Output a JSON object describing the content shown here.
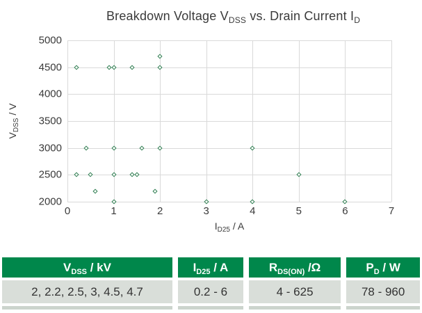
{
  "title": {
    "p1": "Breakdown Voltage V",
    "s1": "DSS",
    "p2": " vs. Drain Current I",
    "s2": "D"
  },
  "chart_data": {
    "type": "scatter",
    "title": "Breakdown Voltage V_DSS vs. Drain Current I_D",
    "xlabel": {
      "pre": "I",
      "sub": "D25",
      "post": " / A"
    },
    "ylabel": {
      "pre": "V",
      "sub": "DSS",
      "post": " / V"
    },
    "xlim": [
      0,
      7
    ],
    "ylim": [
      2000,
      5000
    ],
    "xticks": [
      0,
      1,
      2,
      3,
      4,
      5,
      6,
      7
    ],
    "yticks": [
      5000,
      4500,
      4000,
      3500,
      3000,
      2500,
      2000
    ],
    "grid": true,
    "legend": "none",
    "marker": {
      "shape": "diamond-outline",
      "color": "#2e7d50"
    },
    "points": [
      [
        0.2,
        4500
      ],
      [
        0.9,
        4500
      ],
      [
        1.0,
        4500
      ],
      [
        1.4,
        4500
      ],
      [
        2.0,
        4500
      ],
      [
        2.0,
        4700
      ],
      [
        0.4,
        3000
      ],
      [
        1.0,
        3000
      ],
      [
        1.6,
        3000
      ],
      [
        2.0,
        3000
      ],
      [
        4.0,
        3000
      ],
      [
        0.2,
        2500
      ],
      [
        0.5,
        2500
      ],
      [
        1.0,
        2500
      ],
      [
        1.4,
        2500
      ],
      [
        1.5,
        2500
      ],
      [
        5.0,
        2500
      ],
      [
        0.6,
        2200
      ],
      [
        1.9,
        2200
      ],
      [
        1.0,
        2000
      ],
      [
        3.0,
        2000
      ],
      [
        4.0,
        2000
      ],
      [
        6.0,
        2000
      ]
    ]
  },
  "table": {
    "headers": [
      {
        "pre": "V",
        "sub": "DSS",
        "post": " / kV"
      },
      {
        "pre": "I",
        "sub": "D25",
        "post": " / A"
      },
      {
        "pre": "R",
        "sub": "DS(ON)",
        "post": " /Ω"
      },
      {
        "pre": "P",
        "sub": "D",
        "post": " / W"
      }
    ],
    "row": [
      "2, 2.2, 2.5, 3, 4.5, 4.7",
      "0.2 - 6",
      "4 - 625",
      "78 - 960"
    ]
  },
  "colors": {
    "marker": "#2e7d50",
    "grid": "#d9d9d9",
    "header_bg": "#00874b",
    "header_text": "#ffffff",
    "row_bg": "#d9ded9",
    "strip_bg": "#ccd4cd",
    "text": "#333333"
  }
}
